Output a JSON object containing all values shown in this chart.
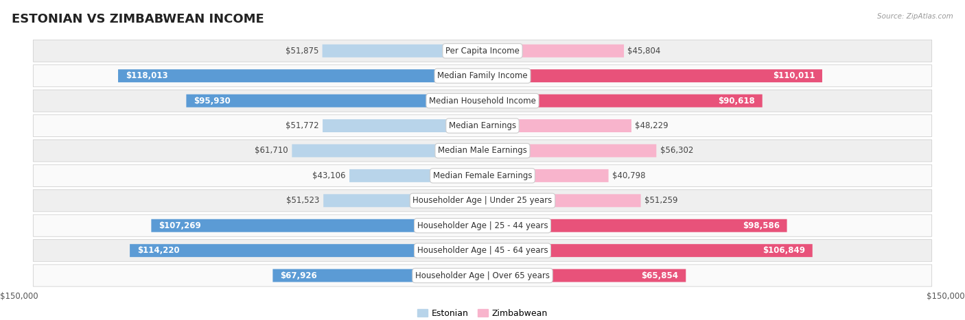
{
  "title": "ESTONIAN VS ZIMBABWEAN INCOME",
  "source": "Source: ZipAtlas.com",
  "categories": [
    "Per Capita Income",
    "Median Family Income",
    "Median Household Income",
    "Median Earnings",
    "Median Male Earnings",
    "Median Female Earnings",
    "Householder Age | Under 25 years",
    "Householder Age | 25 - 44 years",
    "Householder Age | 45 - 64 years",
    "Householder Age | Over 65 years"
  ],
  "estonian_values": [
    51875,
    118013,
    95930,
    51772,
    61710,
    43106,
    51523,
    107269,
    114220,
    67926
  ],
  "zimbabwean_values": [
    45804,
    110011,
    90618,
    48229,
    56302,
    40798,
    51259,
    98586,
    106849,
    65854
  ],
  "max_value": 150000,
  "estonian_bar_light": "#b8d4ea",
  "estonian_bar_dark": "#5b9bd5",
  "zimbabwean_bar_light": "#f8b4cc",
  "zimbabwean_bar_dark": "#e8527a",
  "row_bg_color": "#efefef",
  "row_bg_alt_color": "#fafafa",
  "center_label_bg": "#ffffff",
  "center_label_border": "#cccccc",
  "title_fontsize": 13,
  "label_fontsize": 8.5,
  "value_fontsize": 8.5,
  "axis_label_fontsize": 8.5,
  "legend_fontsize": 9,
  "background_color": "#ffffff",
  "dark_threshold": 65000
}
